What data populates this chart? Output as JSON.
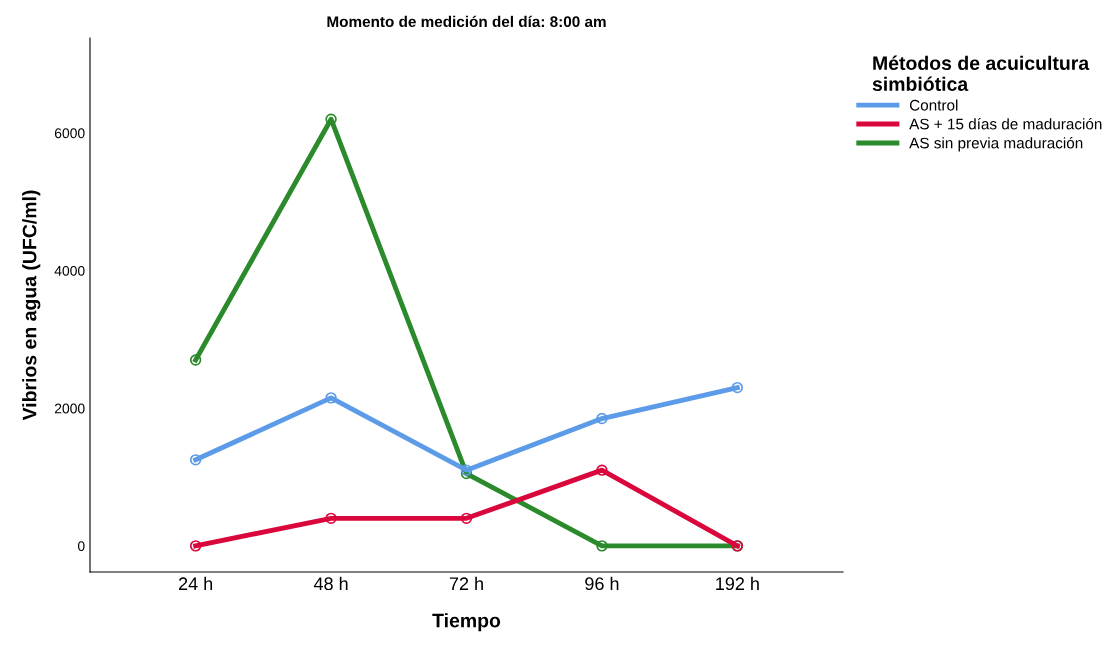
{
  "chart_data": {
    "type": "line",
    "title": "Momento de medición del día: 8:00 am",
    "xlabel": "Tiempo",
    "ylabel": "Vibrios en agua (UFC/ml)",
    "legend_title": "Métodos de acuicultura\nsimbiótica",
    "categories": [
      "24 h",
      "48 h",
      "72 h",
      "96 h",
      "192 h"
    ],
    "series": [
      {
        "name": "Control",
        "color": "#5b9be8",
        "values": [
          1250,
          2150,
          1100,
          1850,
          2300
        ]
      },
      {
        "name": "AS + 15 días de maduración",
        "color": "#d9073c",
        "values": [
          0,
          400,
          400,
          1100,
          0
        ]
      },
      {
        "name": "AS sin previa maduración",
        "color": "#2b8a2b",
        "values": [
          2700,
          6200,
          1050,
          0,
          0
        ]
      }
    ],
    "ylim": [
      -380,
      7380
    ],
    "yticks": [
      0,
      2000,
      4000,
      6000
    ],
    "grid": false,
    "legend": "top right",
    "marker": "circle",
    "line_style": "solid"
  }
}
